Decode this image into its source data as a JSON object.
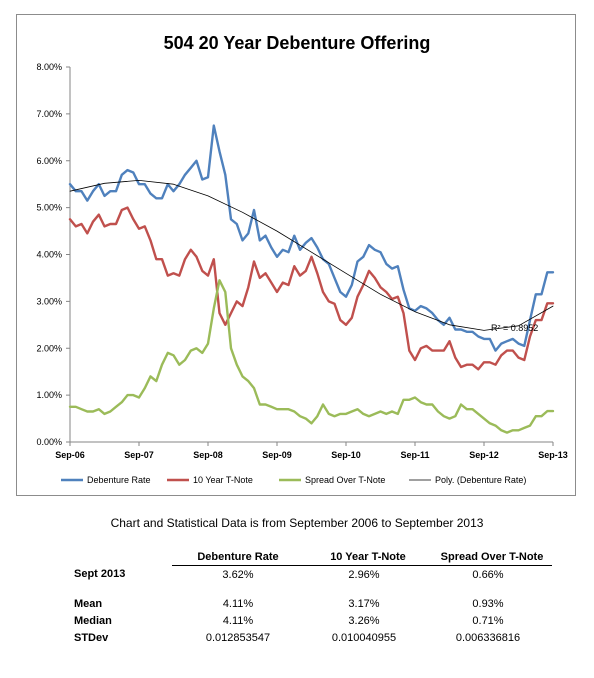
{
  "chart_data": {
    "type": "line",
    "title": "504 20 Year Debenture Offering",
    "xlabel": "",
    "ylabel": "",
    "ylim": [
      0,
      8
    ],
    "y_ticks": [
      "0.00%",
      "1.00%",
      "2.00%",
      "3.00%",
      "4.00%",
      "5.00%",
      "6.00%",
      "7.00%",
      "8.00%"
    ],
    "x_ticks": [
      "Sep-06",
      "Sep-07",
      "Sep-08",
      "Sep-09",
      "Sep-10",
      "Sep-11",
      "Sep-12",
      "Sep-13"
    ],
    "x_range_months": [
      0,
      84
    ],
    "grid": false,
    "legend_position": "bottom",
    "annotation": "R² = 0.8952",
    "series": [
      {
        "name": "Debenture Rate",
        "color": "#4f81bd",
        "months": [
          0,
          1,
          2,
          3,
          4,
          5,
          6,
          7,
          8,
          9,
          10,
          11,
          12,
          13,
          14,
          15,
          16,
          17,
          18,
          19,
          20,
          21,
          22,
          23,
          24,
          25,
          26,
          27,
          28,
          29,
          30,
          31,
          32,
          33,
          34,
          35,
          36,
          37,
          38,
          39,
          40,
          41,
          42,
          43,
          44,
          45,
          46,
          47,
          48,
          49,
          50,
          51,
          52,
          53,
          54,
          55,
          56,
          57,
          58,
          59,
          60,
          61,
          62,
          63,
          64,
          65,
          66,
          67,
          68,
          69,
          70,
          71,
          72,
          73,
          74,
          75,
          76,
          77,
          78,
          79,
          80,
          81,
          82,
          83,
          84
        ],
        "values": [
          5.5,
          5.35,
          5.35,
          5.15,
          5.35,
          5.5,
          5.25,
          5.35,
          5.35,
          5.7,
          5.8,
          5.75,
          5.5,
          5.5,
          5.3,
          5.2,
          5.2,
          5.5,
          5.35,
          5.5,
          5.7,
          5.85,
          6.0,
          5.6,
          5.65,
          6.75,
          6.2,
          5.7,
          4.75,
          4.65,
          4.3,
          4.45,
          4.95,
          4.3,
          4.4,
          4.15,
          3.95,
          4.1,
          4.05,
          4.4,
          4.1,
          4.25,
          4.35,
          4.15,
          3.9,
          3.8,
          3.5,
          3.2,
          3.1,
          3.35,
          3.85,
          3.95,
          4.2,
          4.1,
          4.05,
          3.8,
          3.7,
          3.75,
          3.25,
          2.85,
          2.8,
          2.9,
          2.85,
          2.75,
          2.6,
          2.5,
          2.65,
          2.4,
          2.4,
          2.35,
          2.35,
          2.25,
          2.2,
          2.2,
          1.95,
          2.1,
          2.15,
          2.2,
          2.1,
          2.05,
          2.6,
          3.15,
          3.15,
          3.62,
          3.62
        ]
      },
      {
        "name": "10 Year T-Note",
        "color": "#c0504d",
        "months": [
          0,
          1,
          2,
          3,
          4,
          5,
          6,
          7,
          8,
          9,
          10,
          11,
          12,
          13,
          14,
          15,
          16,
          17,
          18,
          19,
          20,
          21,
          22,
          23,
          24,
          25,
          26,
          27,
          28,
          29,
          30,
          31,
          32,
          33,
          34,
          35,
          36,
          37,
          38,
          39,
          40,
          41,
          42,
          43,
          44,
          45,
          46,
          47,
          48,
          49,
          50,
          51,
          52,
          53,
          54,
          55,
          56,
          57,
          58,
          59,
          60,
          61,
          62,
          63,
          64,
          65,
          66,
          67,
          68,
          69,
          70,
          71,
          72,
          73,
          74,
          75,
          76,
          77,
          78,
          79,
          80,
          81,
          82,
          83,
          84
        ],
        "values": [
          4.75,
          4.6,
          4.65,
          4.45,
          4.7,
          4.85,
          4.6,
          4.65,
          4.65,
          4.95,
          5.0,
          4.75,
          4.55,
          4.6,
          4.3,
          3.9,
          3.9,
          3.55,
          3.6,
          3.55,
          3.9,
          4.1,
          3.95,
          3.65,
          3.55,
          3.9,
          2.75,
          2.5,
          2.75,
          3.0,
          2.9,
          3.3,
          3.85,
          3.5,
          3.6,
          3.4,
          3.2,
          3.4,
          3.35,
          3.75,
          3.55,
          3.65,
          3.95,
          3.6,
          3.2,
          3.0,
          2.95,
          2.6,
          2.5,
          2.65,
          3.1,
          3.35,
          3.65,
          3.5,
          3.3,
          3.2,
          3.05,
          3.1,
          2.75,
          1.95,
          1.75,
          2.0,
          2.05,
          1.95,
          1.95,
          1.95,
          2.15,
          1.8,
          1.6,
          1.65,
          1.65,
          1.55,
          1.7,
          1.7,
          1.65,
          1.85,
          1.95,
          1.95,
          1.8,
          1.75,
          2.25,
          2.6,
          2.6,
          2.96,
          2.96
        ]
      },
      {
        "name": "Spread Over T-Note",
        "color": "#9bbb59",
        "months": [
          0,
          1,
          2,
          3,
          4,
          5,
          6,
          7,
          8,
          9,
          10,
          11,
          12,
          13,
          14,
          15,
          16,
          17,
          18,
          19,
          20,
          21,
          22,
          23,
          24,
          25,
          26,
          27,
          28,
          29,
          30,
          31,
          32,
          33,
          34,
          35,
          36,
          37,
          38,
          39,
          40,
          41,
          42,
          43,
          44,
          45,
          46,
          47,
          48,
          49,
          50,
          51,
          52,
          53,
          54,
          55,
          56,
          57,
          58,
          59,
          60,
          61,
          62,
          63,
          64,
          65,
          66,
          67,
          68,
          69,
          70,
          71,
          72,
          73,
          74,
          75,
          76,
          77,
          78,
          79,
          80,
          81,
          82,
          83,
          84
        ],
        "values": [
          0.75,
          0.75,
          0.7,
          0.65,
          0.65,
          0.7,
          0.6,
          0.65,
          0.75,
          0.85,
          1.0,
          1.0,
          0.95,
          1.15,
          1.4,
          1.3,
          1.65,
          1.9,
          1.85,
          1.65,
          1.75,
          1.95,
          2.0,
          1.9,
          2.1,
          2.85,
          3.45,
          3.2,
          2.0,
          1.65,
          1.4,
          1.3,
          1.15,
          0.8,
          0.8,
          0.75,
          0.7,
          0.7,
          0.7,
          0.65,
          0.55,
          0.5,
          0.4,
          0.55,
          0.8,
          0.6,
          0.55,
          0.6,
          0.6,
          0.65,
          0.7,
          0.6,
          0.55,
          0.6,
          0.65,
          0.6,
          0.65,
          0.6,
          0.9,
          0.9,
          0.95,
          0.85,
          0.8,
          0.8,
          0.65,
          0.55,
          0.5,
          0.55,
          0.8,
          0.7,
          0.7,
          0.6,
          0.5,
          0.4,
          0.35,
          0.25,
          0.2,
          0.25,
          0.25,
          0.3,
          0.35,
          0.55,
          0.55,
          0.66,
          0.66
        ]
      },
      {
        "name": "Poly. (Debenture Rate)",
        "color": "#000000",
        "months": [
          0,
          6,
          12,
          18,
          24,
          30,
          36,
          42,
          48,
          54,
          60,
          66,
          72,
          78,
          84
        ],
        "values": [
          5.35,
          5.52,
          5.58,
          5.5,
          5.25,
          4.9,
          4.5,
          4.05,
          3.6,
          3.15,
          2.78,
          2.5,
          2.38,
          2.48,
          2.9
        ]
      }
    ]
  },
  "caption": "Chart and Statistical Data is from September 2006 to September 2013",
  "stats": {
    "headers": [
      "Debenture Rate",
      "10 Year T-Note",
      "Spread Over T-Note"
    ],
    "sept_2013": {
      "label": "Sept 2013",
      "values": [
        "3.62%",
        "2.96%",
        "0.66%"
      ]
    },
    "mean": {
      "label": "Mean",
      "values": [
        "4.11%",
        "3.17%",
        "0.93%"
      ]
    },
    "median": {
      "label": "Median",
      "values": [
        "4.11%",
        "3.26%",
        "0.71%"
      ]
    },
    "stdev": {
      "label": "STDev",
      "values": [
        "0.012853547",
        "0.010040955",
        "0.006336816"
      ]
    }
  }
}
